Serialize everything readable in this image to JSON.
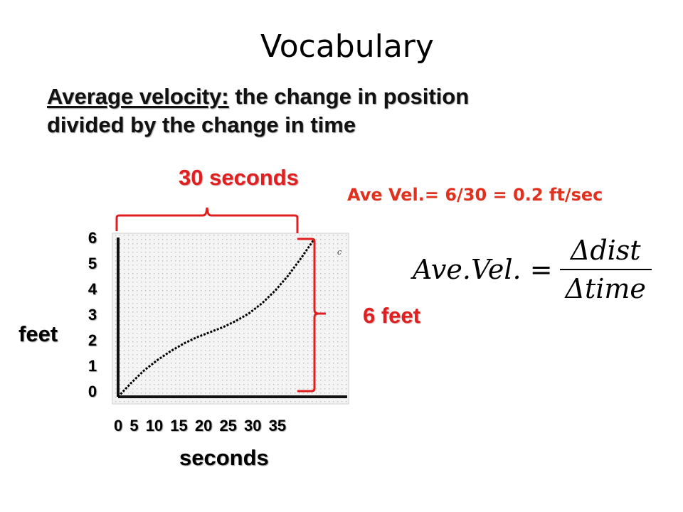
{
  "slide": {
    "title": "Vocabulary",
    "definition_term": "Average velocity:",
    "definition_line1": "the change in position",
    "definition_line2": "divided by the change in time",
    "label_time_span": "30 seconds",
    "label_distance_span": "6 feet",
    "ave_vel_text": "Ave Vel.= 6/30 = 0.2 ft/sec",
    "y_axis_label": "feet",
    "x_axis_label": "seconds",
    "x_ticks": "0  5  10  15  20  25  30  35",
    "formula": {
      "lhs": "Ave.Vel. =",
      "numerator": "Δdist",
      "denominator": "Δtime"
    }
  },
  "chart_data": {
    "type": "line",
    "x_tick_labels": [
      "0",
      "5",
      "10",
      "15",
      "20",
      "25",
      "30",
      "35"
    ],
    "y_tick_labels": [
      "6",
      "5",
      "4",
      "3",
      "2",
      "1",
      "0"
    ],
    "xlabel": "seconds",
    "ylabel": "feet",
    "xlim": [
      0,
      35
    ],
    "ylim": [
      0,
      6.3
    ],
    "grid": true,
    "series": [
      {
        "color": "#000000",
        "x": [
          0,
          2,
          4,
          6,
          8,
          10,
          12,
          14,
          16,
          18,
          20,
          22,
          24,
          26,
          28,
          30
        ],
        "y": [
          0,
          0.55,
          1.05,
          1.45,
          1.8,
          2.1,
          2.35,
          2.55,
          2.75,
          3.0,
          3.3,
          3.7,
          4.2,
          4.8,
          5.5,
          6.25
        ]
      }
    ]
  }
}
